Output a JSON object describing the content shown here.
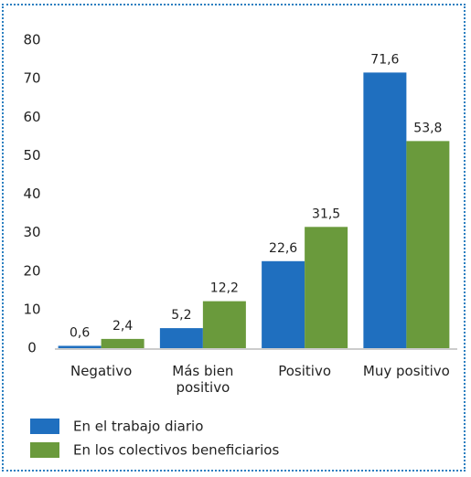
{
  "chart_data": {
    "type": "bar",
    "categories": [
      "Negativo",
      "Más bien positivo",
      "Positivo",
      "Muy positivo"
    ],
    "series": [
      {
        "name": "En el trabajo diario",
        "color": "#1f6fbf",
        "values": [
          0.6,
          5.2,
          22.6,
          71.6
        ],
        "value_labels": [
          "0,6",
          "5,2",
          "22,6",
          "71,6"
        ]
      },
      {
        "name": "En los colectivos beneficiarios",
        "color": "#6a9a3c",
        "values": [
          2.4,
          12.2,
          31.5,
          53.8
        ],
        "value_labels": [
          "2,4",
          "12,2",
          "31,5",
          "53,8"
        ]
      }
    ],
    "ylim": [
      0,
      80
    ],
    "yticks": [
      0,
      10,
      20,
      30,
      40,
      50,
      60,
      70,
      80
    ],
    "grid": false
  }
}
